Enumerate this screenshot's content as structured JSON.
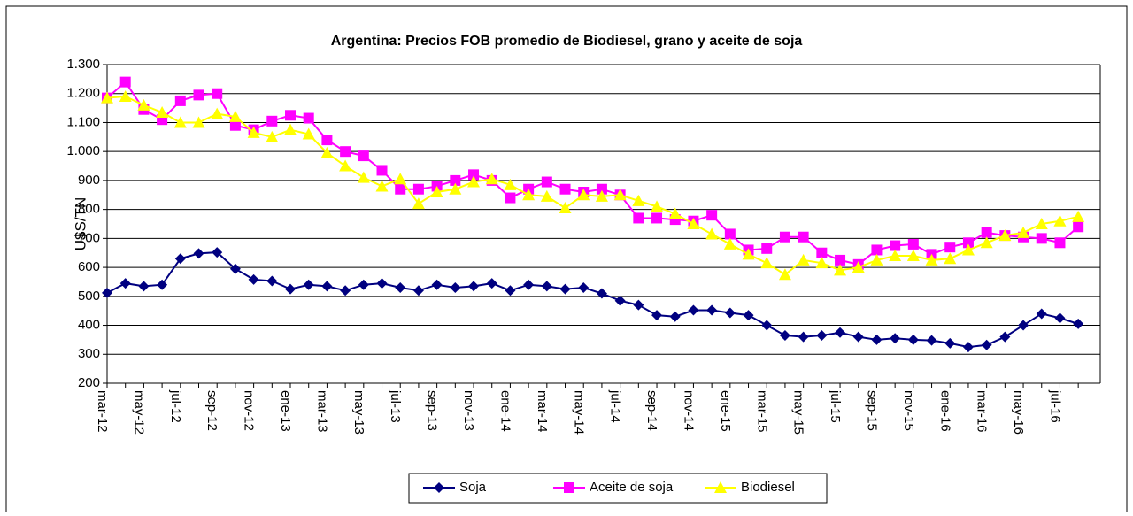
{
  "chart_data": {
    "type": "line",
    "title": "Argentina: Precios FOB  promedio de Biodiesel, grano y aceite de soja",
    "y_label": "U$S/TN",
    "categories": [
      "mar-12",
      null,
      "may-12",
      null,
      "jul-12",
      null,
      "sep-12",
      null,
      "nov-12",
      null,
      "ene-13",
      null,
      "mar-13",
      null,
      "may-13",
      null,
      "jul-13",
      null,
      "sep-13",
      null,
      "nov-13",
      null,
      "ene-14",
      null,
      "mar-14",
      null,
      "may-14",
      null,
      "jul-14",
      null,
      "sep-14",
      null,
      "nov-14",
      null,
      "ene-15",
      null,
      "mar-15",
      null,
      "may-15",
      null,
      "jul-15",
      null,
      "sep-15",
      null,
      "nov-15",
      null,
      "ene-16",
      null,
      "mar-16",
      null,
      "may-16",
      null,
      "jul-16",
      null
    ],
    "series": [
      {
        "name": "Soja",
        "color": "#000080",
        "marker": "diamond",
        "values": [
          512,
          545,
          535,
          540,
          630,
          648,
          652,
          595,
          558,
          553,
          525,
          540,
          535,
          520,
          540,
          545,
          530,
          520,
          540,
          530,
          535,
          545,
          520,
          540,
          535,
          525,
          530,
          510,
          485,
          470,
          435,
          430,
          452,
          452,
          443,
          435,
          400,
          365,
          360,
          365,
          375,
          360,
          350,
          355,
          350,
          348,
          338,
          325,
          332,
          360,
          400,
          440,
          425,
          405
        ]
      },
      {
        "name": "Aceite de soja",
        "color": "#ff00ff",
        "marker": "square",
        "values": [
          1185,
          1240,
          1145,
          1110,
          1175,
          1195,
          1200,
          1090,
          1075,
          1105,
          1125,
          1115,
          1040,
          1000,
          985,
          935,
          870,
          870,
          880,
          900,
          920,
          900,
          840,
          870,
          895,
          870,
          860,
          870,
          850,
          770,
          770,
          765,
          760,
          780,
          715,
          660,
          665,
          705,
          705,
          650,
          625,
          610,
          660,
          675,
          680,
          645,
          670,
          685,
          720,
          710,
          705,
          700,
          685,
          740
        ]
      },
      {
        "name": "Biodiesel",
        "color": "#ffff00",
        "marker": "triangle",
        "values": [
          1185,
          1190,
          1160,
          1135,
          1100,
          1100,
          1130,
          1120,
          1065,
          1050,
          1075,
          1060,
          995,
          950,
          910,
          880,
          905,
          820,
          860,
          870,
          895,
          905,
          885,
          850,
          845,
          805,
          850,
          845,
          850,
          830,
          810,
          785,
          750,
          715,
          680,
          645,
          615,
          575,
          625,
          615,
          590,
          600,
          625,
          640,
          640,
          625,
          630,
          660,
          685,
          710,
          720,
          750,
          760,
          775
        ]
      }
    ],
    "ylim": [
      200,
      1300
    ],
    "yticks": [
      200,
      300,
      400,
      500,
      600,
      700,
      800,
      900,
      {
        "value": 1000,
        "label": "1.000"
      },
      {
        "value": 1100,
        "label": "1.100"
      },
      {
        "value": 1200,
        "label": "1.200"
      },
      {
        "value": 1300,
        "label": "1.300"
      }
    ],
    "grid": true,
    "legend": "bottom"
  }
}
